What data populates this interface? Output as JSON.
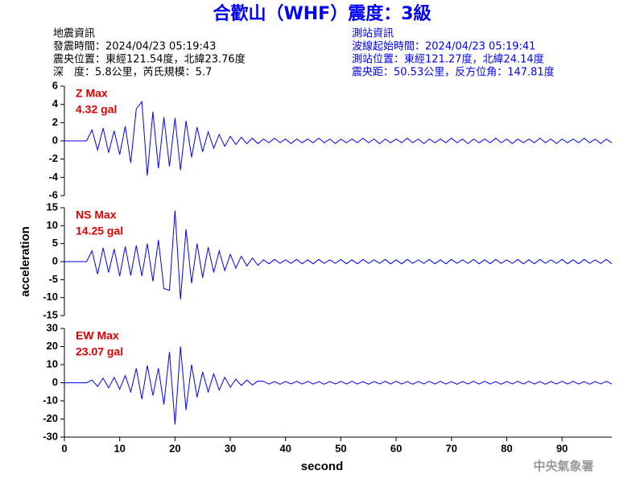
{
  "header": {
    "title": "合歡山（WHF）震度：3級",
    "event": [
      "地震資訊",
      "發震時間：2024/04/23 05:19:43",
      "震央位置：東經121.54度，北緯23.76度",
      "深　度：5.8公里，芮氏規模：5.7"
    ],
    "station": [
      "測站資訊",
      "波線起始時間：2024/04/23 05:19:41",
      "測站位置：東經121.27度，北緯24.14度",
      "震央距：50.53公里，反方位角：147.81度"
    ]
  },
  "footer": "中央氣象署",
  "chart_data": [
    {
      "type": "line",
      "max_name": "Z Max",
      "max_label": "4.32 gal",
      "xlim": [
        0,
        99
      ],
      "ylim": [
        -6,
        6
      ],
      "yticks": [
        6,
        4,
        2,
        0,
        -2,
        -4,
        -6
      ],
      "x": [
        0,
        1,
        2,
        3,
        4,
        5,
        6,
        7,
        8,
        9,
        10,
        11,
        12,
        13,
        14,
        15,
        16,
        17,
        18,
        19,
        20,
        21,
        22,
        23,
        24,
        25,
        26,
        27,
        28,
        29,
        30,
        31,
        32,
        33,
        34,
        35,
        36,
        37,
        38,
        39,
        40,
        41,
        42,
        43,
        44,
        45,
        46,
        47,
        48,
        49,
        50,
        51,
        52,
        53,
        54,
        55,
        56,
        57,
        58,
        59,
        60,
        61,
        62,
        63,
        64,
        65,
        66,
        67,
        68,
        69,
        70,
        71,
        72,
        73,
        74,
        75,
        76,
        77,
        78,
        79,
        80,
        81,
        82,
        83,
        84,
        85,
        86,
        87,
        88,
        89,
        90,
        91,
        92,
        93,
        94,
        95,
        96,
        97,
        98,
        99
      ],
      "series": [
        {
          "color": "#0000ff",
          "values": [
            0,
            0,
            0,
            0,
            0,
            1.2,
            -1.0,
            1.4,
            -1.3,
            1.1,
            -1.5,
            1.6,
            -2.4,
            3.5,
            4.3,
            -3.8,
            3.2,
            -3.0,
            2.6,
            -2.8,
            2.5,
            -3.2,
            2.2,
            -1.8,
            1.5,
            -1.2,
            1.0,
            -0.8,
            0.7,
            -0.6,
            0.5,
            -0.4,
            0.4,
            -0.3,
            0.3,
            -0.3,
            0.2,
            -0.2,
            0.3,
            -0.2,
            0.2,
            -0.3,
            0.2,
            -0.2,
            0.2,
            -0.2,
            0.3,
            -0.2,
            0.2,
            -0.3,
            0.2,
            -0.2,
            0.2,
            -0.2,
            0.3,
            -0.2,
            0.2,
            -0.3,
            0.2,
            -0.2,
            0.2,
            -0.2,
            0.3,
            -0.2,
            0.2,
            -0.3,
            0.2,
            -0.2,
            0.2,
            -0.2,
            0.3,
            -0.2,
            0.2,
            -0.3,
            0.2,
            -0.2,
            0.2,
            -0.2,
            0.3,
            -0.2,
            0.2,
            -0.3,
            0.2,
            -0.2,
            0.2,
            -0.2,
            0.3,
            -0.2,
            0.2,
            -0.3,
            0.2,
            -0.2,
            0.2,
            -0.2,
            0.3,
            -0.2,
            0.2,
            -0.3,
            0.2,
            -0.2
          ]
        }
      ]
    },
    {
      "type": "line",
      "max_name": "NS Max",
      "max_label": "14.25 gal",
      "ylabel": "acceleration",
      "xlim": [
        0,
        99
      ],
      "ylim": [
        -15,
        15
      ],
      "yticks": [
        15,
        10,
        5,
        0,
        -5,
        -10,
        -15
      ],
      "x": [
        0,
        1,
        2,
        3,
        4,
        5,
        6,
        7,
        8,
        9,
        10,
        11,
        12,
        13,
        14,
        15,
        16,
        17,
        18,
        19,
        20,
        21,
        22,
        23,
        24,
        25,
        26,
        27,
        28,
        29,
        30,
        31,
        32,
        33,
        34,
        35,
        36,
        37,
        38,
        39,
        40,
        41,
        42,
        43,
        44,
        45,
        46,
        47,
        48,
        49,
        50,
        51,
        52,
        53,
        54,
        55,
        56,
        57,
        58,
        59,
        60,
        61,
        62,
        63,
        64,
        65,
        66,
        67,
        68,
        69,
        70,
        71,
        72,
        73,
        74,
        75,
        76,
        77,
        78,
        79,
        80,
        81,
        82,
        83,
        84,
        85,
        86,
        87,
        88,
        89,
        90,
        91,
        92,
        93,
        94,
        95,
        96,
        97,
        98,
        99
      ],
      "series": [
        {
          "color": "#0000ff",
          "values": [
            0,
            0,
            0,
            0,
            0,
            3.0,
            -3.5,
            3.8,
            -3.0,
            3.5,
            -4.0,
            4.2,
            -3.8,
            4.5,
            -4.0,
            5.0,
            -5.5,
            6.0,
            -7.5,
            -8.0,
            14.25,
            -10.5,
            9.0,
            -6.0,
            5.0,
            -4.5,
            4.0,
            -3.0,
            3.0,
            -2.5,
            2.0,
            -1.8,
            1.5,
            -1.2,
            1.0,
            -1.0,
            0.5,
            -0.6,
            0.6,
            -0.5,
            0.5,
            -0.5,
            0.6,
            -0.6,
            0.5,
            -0.6,
            0.6,
            -0.5,
            0.5,
            -0.5,
            0.6,
            -0.6,
            0.5,
            -0.6,
            0.6,
            -0.5,
            0.5,
            -0.5,
            0.6,
            -0.6,
            0.5,
            -0.6,
            0.6,
            -0.5,
            0.5,
            -0.5,
            0.6,
            -0.6,
            0.5,
            -0.6,
            0.6,
            -0.5,
            0.5,
            -0.5,
            0.6,
            -0.6,
            0.5,
            -0.6,
            0.6,
            -0.5,
            0.5,
            -0.5,
            0.6,
            -0.6,
            0.5,
            -0.6,
            0.6,
            -0.5,
            0.5,
            -0.5,
            0.6,
            -0.6,
            0.5,
            -0.6,
            0.6,
            -0.5,
            0.5,
            -0.5,
            0.6,
            -0.6
          ]
        }
      ]
    },
    {
      "type": "line",
      "max_name": "EW Max",
      "max_label": "23.07 gal",
      "xlabel": "second",
      "xlim": [
        0,
        99
      ],
      "xticks": [
        0,
        10,
        20,
        30,
        40,
        50,
        60,
        70,
        80,
        90
      ],
      "ylim": [
        -30,
        30
      ],
      "yticks": [
        30,
        20,
        10,
        0,
        -10,
        -20,
        -30
      ],
      "x": [
        0,
        1,
        2,
        3,
        4,
        5,
        6,
        7,
        8,
        9,
        10,
        11,
        12,
        13,
        14,
        15,
        16,
        17,
        18,
        19,
        20,
        21,
        22,
        23,
        24,
        25,
        26,
        27,
        28,
        29,
        30,
        31,
        32,
        33,
        34,
        35,
        36,
        37,
        38,
        39,
        40,
        41,
        42,
        43,
        44,
        45,
        46,
        47,
        48,
        49,
        50,
        51,
        52,
        53,
        54,
        55,
        56,
        57,
        58,
        59,
        60,
        61,
        62,
        63,
        64,
        65,
        66,
        67,
        68,
        69,
        70,
        71,
        72,
        73,
        74,
        75,
        76,
        77,
        78,
        79,
        80,
        81,
        82,
        83,
        84,
        85,
        86,
        87,
        88,
        89,
        90,
        91,
        92,
        93,
        94,
        95,
        96,
        97,
        98,
        99
      ],
      "series": [
        {
          "color": "#0000ff",
          "values": [
            0,
            0,
            0,
            0,
            0,
            1.5,
            -2.0,
            2.5,
            -2.8,
            3.0,
            -3.5,
            4.0,
            -5.0,
            8.0,
            -9.0,
            9.5,
            -7.0,
            8.0,
            -12.0,
            17.0,
            -23.0,
            20.0,
            -15.0,
            10.0,
            -8.0,
            6.0,
            -5.0,
            5.0,
            -4.0,
            3.0,
            -2.5,
            2.0,
            -1.5,
            1.5,
            -1.2,
            1.0,
            0.8,
            -0.7,
            0.6,
            -0.8,
            0.7,
            -0.6,
            0.8,
            -0.7,
            0.8,
            -0.7,
            0.6,
            -0.8,
            0.7,
            -0.6,
            0.8,
            -0.7,
            0.8,
            -0.7,
            0.6,
            -0.8,
            0.7,
            -0.6,
            0.8,
            -0.7,
            0.8,
            -0.7,
            0.6,
            -0.8,
            0.7,
            -0.6,
            0.8,
            -0.7,
            0.8,
            -0.7,
            0.6,
            -0.8,
            0.7,
            -0.6,
            0.8,
            -0.7,
            0.8,
            -0.7,
            0.6,
            -0.8,
            0.7,
            -0.6,
            0.8,
            -0.7,
            0.8,
            -0.7,
            0.6,
            -0.8,
            0.7,
            -0.6,
            0.8,
            -0.7,
            0.8,
            -0.7,
            0.6,
            -0.8,
            0.7,
            -0.6,
            0.8,
            -0.7
          ]
        }
      ]
    }
  ]
}
